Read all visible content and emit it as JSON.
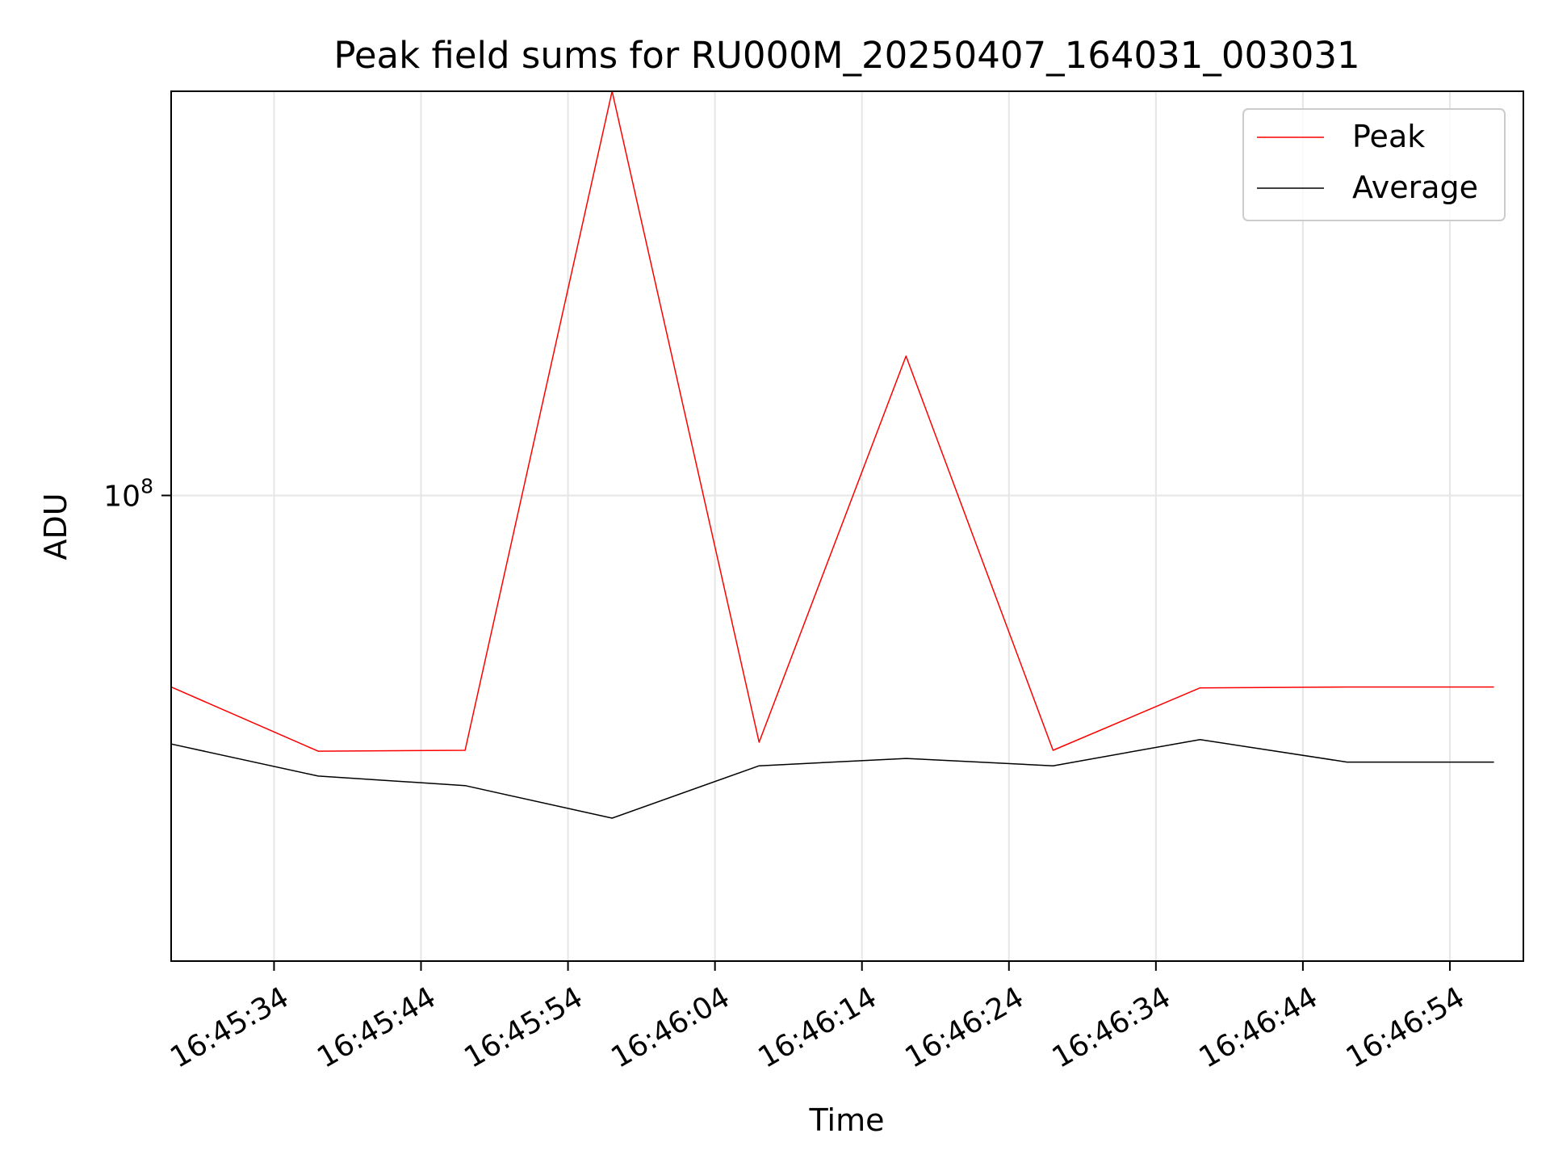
{
  "chart_data": {
    "type": "line",
    "title": "Peak field sums for RU000M_20250407_164031_003031",
    "xlabel": "Time",
    "ylabel": "ADU",
    "y_scale": "log",
    "grid": true,
    "legend_position": "top-right",
    "x": [
      "16:45:27",
      "16:45:37",
      "16:45:47",
      "16:45:57",
      "16:46:07",
      "16:46:17",
      "16:46:27",
      "16:46:37",
      "16:46:47",
      "16:46:57"
    ],
    "xlim": [
      "16:45:27",
      "16:46:59"
    ],
    "x_ticks": [
      "16:45:34",
      "16:45:44",
      "16:45:54",
      "16:46:04",
      "16:46:14",
      "16:46:24",
      "16:46:34",
      "16:46:44",
      "16:46:54"
    ],
    "ylim": [
      45000000,
      200000000
    ],
    "y_ticks": [
      {
        "value": 100000000,
        "base": "10",
        "exponent": "8"
      }
    ],
    "series": [
      {
        "name": "Peak",
        "color": "#ff0000",
        "values": [
          72000000,
          64500000,
          64600000,
          200000000,
          65500000,
          127000000,
          64600000,
          71900000,
          72000000,
          72000000
        ]
      },
      {
        "name": "Average",
        "color": "#000000",
        "values": [
          65300000,
          61800000,
          60800000,
          57500000,
          62900000,
          63700000,
          62900000,
          65800000,
          63300000,
          63300000
        ]
      }
    ]
  }
}
